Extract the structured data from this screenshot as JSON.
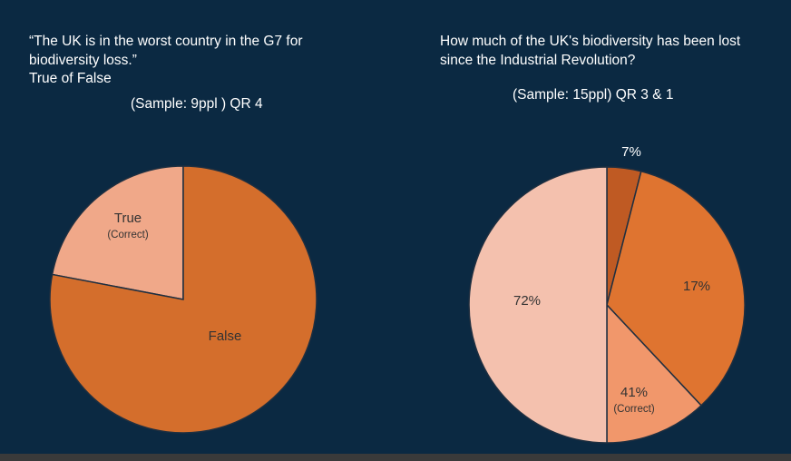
{
  "chart_data": [
    {
      "type": "pie",
      "title": "“The UK is in the worst country in the G7 for\nbiodiversity loss.”\nTrue of False",
      "subtitle": "(Sample: 9ppl ) QR 4",
      "slices": [
        {
          "label": "True",
          "sublabel": "(Correct)",
          "value": 22,
          "color": "#f0a889",
          "text_color": "#333333"
        },
        {
          "label": "False",
          "sublabel": "",
          "value": 78,
          "color": "#d46e2c",
          "text_color": "#333333"
        }
      ],
      "start_angle_deg": 0,
      "edge_color": "#1f2f40"
    },
    {
      "type": "pie",
      "title": "How much of the UK's biodiversity has been lost\nsince the Industrial Revolution?",
      "subtitle": "(Sample: 15ppl) QR 3 & 1",
      "slices": [
        {
          "label": "7%",
          "sublabel": "",
          "value": 4,
          "color": "#bf5a23",
          "text_color": "#ffffff"
        },
        {
          "label": "17%",
          "sublabel": "",
          "value": 34,
          "color": "#df7430",
          "text_color": "#333333"
        },
        {
          "label": "41%",
          "sublabel": "(Correct)",
          "value": 12,
          "color": "#f1976b",
          "text_color": "#333333"
        },
        {
          "label": "72%",
          "sublabel": "",
          "value": 50,
          "color": "#f4c1ae",
          "text_color": "#333333"
        }
      ],
      "start_angle_deg": 0,
      "edge_color": "#1f2f40"
    }
  ]
}
